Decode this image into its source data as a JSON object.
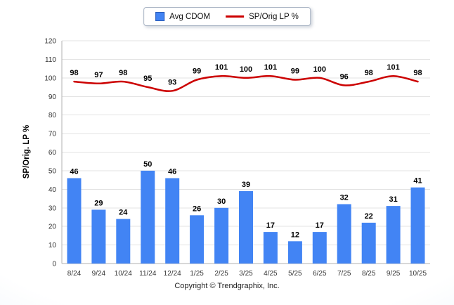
{
  "footer": {
    "text": "Copyright © Trendgraphix, Inc."
  },
  "chart_data": {
    "type": "bar",
    "categories": [
      "8/24",
      "9/24",
      "10/24",
      "11/24",
      "12/24",
      "1/25",
      "2/25",
      "3/25",
      "4/25",
      "5/25",
      "6/25",
      "7/25",
      "8/25",
      "9/25",
      "10/25"
    ],
    "series": [
      {
        "name": "Avg CDOM",
        "kind": "bar",
        "color": "#4284f4",
        "values": [
          46,
          29,
          24,
          50,
          46,
          26,
          30,
          39,
          17,
          12,
          17,
          32,
          22,
          31,
          41
        ]
      },
      {
        "name": "SP/Orig LP %",
        "kind": "line",
        "color": "#cc0000",
        "values": [
          98,
          97,
          98,
          95,
          93,
          99,
          101,
          100,
          101,
          99,
          100,
          96,
          98,
          101,
          98
        ]
      }
    ],
    "xlabel": "",
    "ylabel": "SP/Orig. LP %",
    "ylim": [
      0,
      120
    ],
    "ytick_step": 10,
    "grid": true,
    "legend_position": "top"
  }
}
